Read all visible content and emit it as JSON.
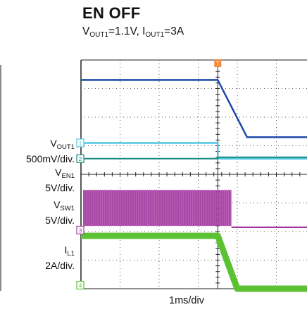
{
  "title": "EN OFF",
  "subtitle": {
    "v_sym": "V",
    "v_sub": "OUT1",
    "v_val": "=1.1V, ",
    "i_sym": "I",
    "i_sub": "OUT1",
    "i_val": "=3A"
  },
  "channels": [
    {
      "sym": "V",
      "sub": "OUT1",
      "scale": "500mV/div.",
      "marker": "1"
    },
    {
      "sym": "V",
      "sub": "EN1",
      "scale": "5V/div.",
      "marker": "2"
    },
    {
      "sym": "V",
      "sub": "SW1",
      "scale": "5V/div.",
      "marker": "3"
    },
    {
      "sym": "I",
      "sub": "L1",
      "scale": "2A/div.",
      "marker": "4"
    }
  ],
  "trigger_marker": "T",
  "xlabel": "1ms/div",
  "chart_data": {
    "type": "line",
    "title": "EN OFF",
    "xlabel": "1ms/div",
    "x_divisions": 10,
    "y_divisions": 8,
    "x_visible_divisions": [
      0,
      6.7
    ],
    "trigger_division": 3.5,
    "series": [
      {
        "name": "VOUT1",
        "color": "#1d49a8",
        "scale": "500mV/div.",
        "x_div": [
          0,
          3.5,
          4.25,
          6.7
        ],
        "y_div": [
          7.3,
          7.3,
          5.3,
          5.3
        ]
      },
      {
        "name": "VOUT1 (lower trace)",
        "color": "#4cc6e0",
        "scale": "500mV/div.",
        "x_div": [
          0,
          3.5,
          3.5,
          6.7
        ],
        "y_div": [
          5.1,
          5.1,
          4.55,
          4.55
        ]
      },
      {
        "name": "VEN1",
        "color": "#1a8a80",
        "scale": "5V/div.",
        "x_div": [
          0,
          3.5,
          3.5,
          6.7
        ],
        "y_div": [
          4.55,
          4.55,
          4.6,
          4.6
        ]
      },
      {
        "name": "VSW1",
        "color": "#a23aa0",
        "scale": "5V/div.",
        "switching_until_div": 3.85,
        "high_div": 3.45,
        "low_div": 2.2,
        "after_div": 2.15
      },
      {
        "name": "IL1",
        "color": "#5cc234",
        "scale": "2A/div.",
        "x_div": [
          0,
          3.5,
          4.0,
          6.7
        ],
        "y_div": [
          1.85,
          1.85,
          0,
          0
        ]
      }
    ]
  },
  "colors": {
    "grid": "#555555",
    "trigger": "#f28a3c",
    "vout": "#1d49a8",
    "vout_low": "#4cc6e0",
    "ven": "#1a8a80",
    "vsw": "#a23aa0",
    "il": "#5cc234"
  }
}
